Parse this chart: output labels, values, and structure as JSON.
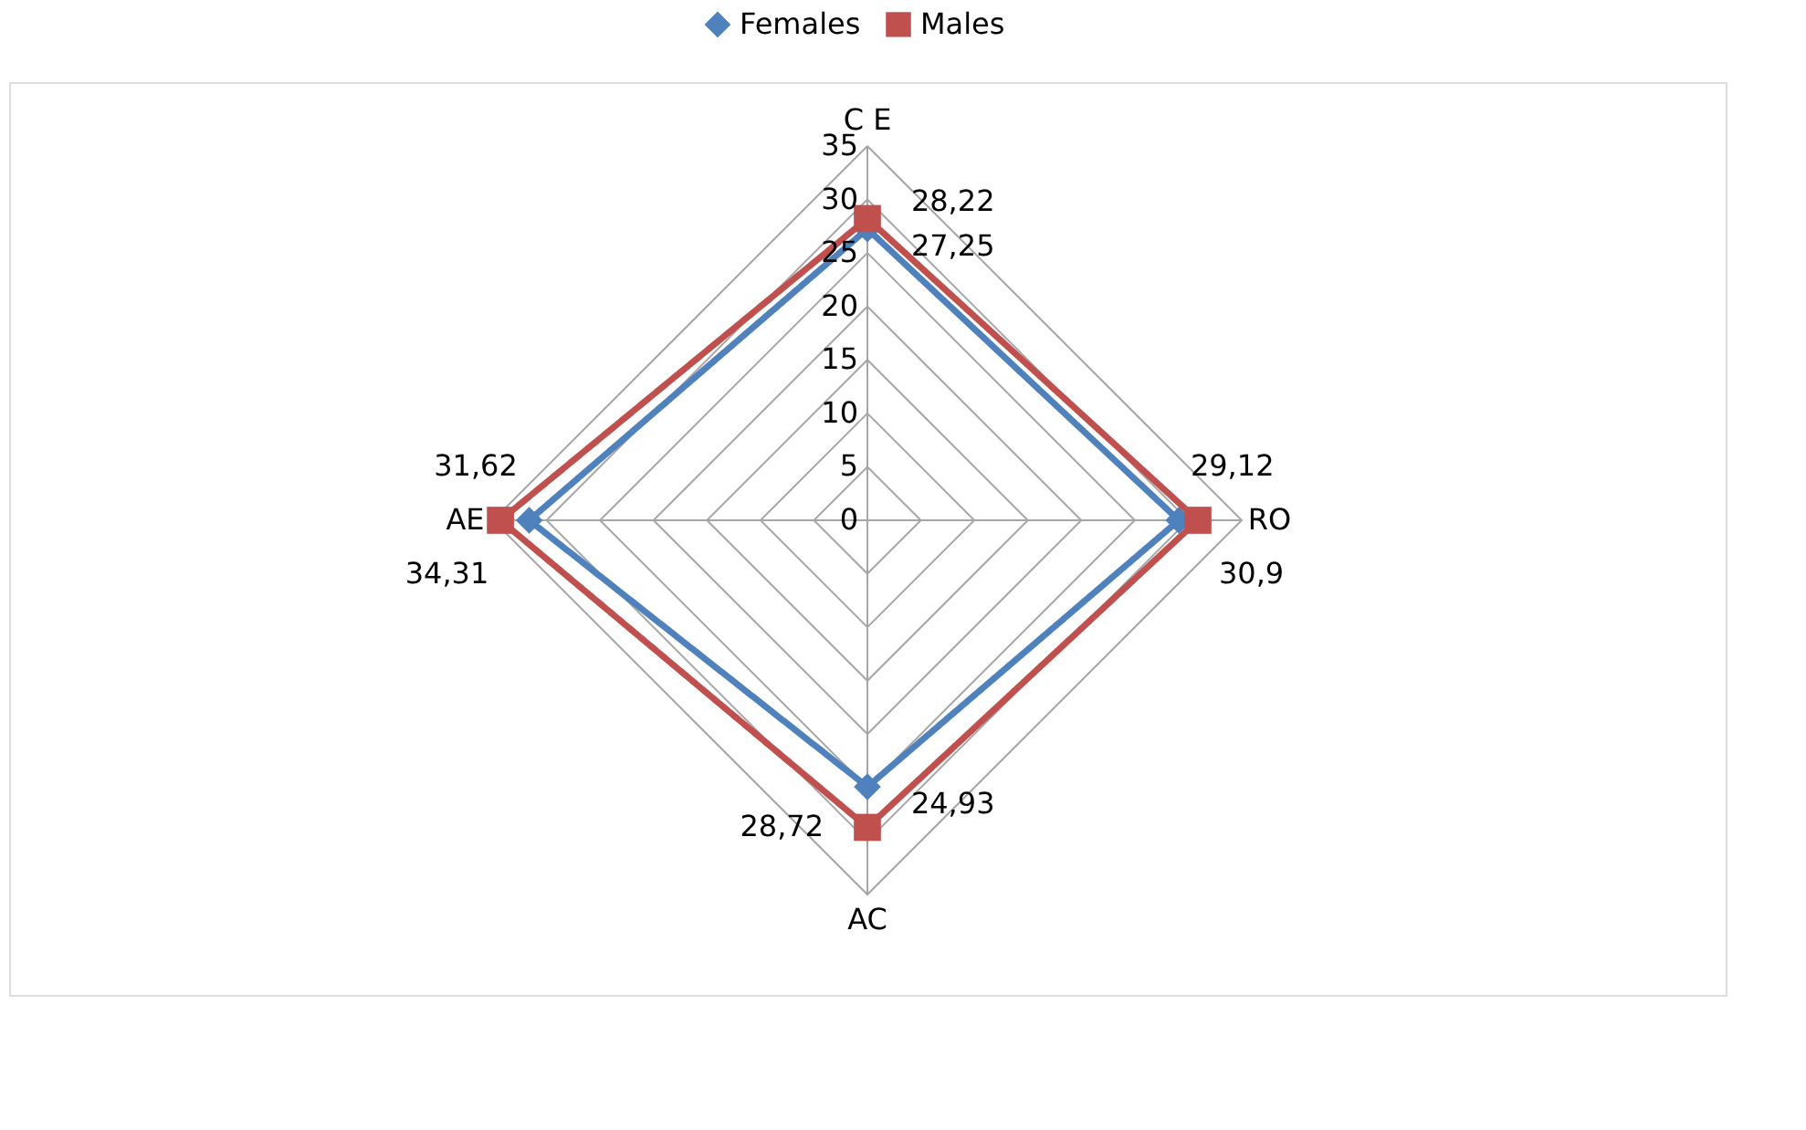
{
  "chart_data": {
    "type": "radar",
    "categories": [
      "C E",
      "RO",
      "AC",
      "AE"
    ],
    "series": [
      {
        "name": "Females",
        "color": "#4f81bd",
        "marker": "diamond",
        "values": [
          27.25,
          29.12,
          24.93,
          31.62
        ],
        "value_labels": [
          "27,25",
          "29,12",
          "24,93",
          "31,62"
        ]
      },
      {
        "name": "Males",
        "color": "#c0504d",
        "marker": "square",
        "values": [
          28.22,
          30.9,
          28.72,
          34.31
        ],
        "value_labels": [
          "28,22",
          "30,9",
          "28,72",
          "34,31"
        ]
      }
    ],
    "ylim": [
      0,
      35
    ],
    "yticks": [
      0,
      5,
      10,
      15,
      20,
      25,
      30,
      35
    ],
    "grid": true,
    "legend": "top"
  }
}
